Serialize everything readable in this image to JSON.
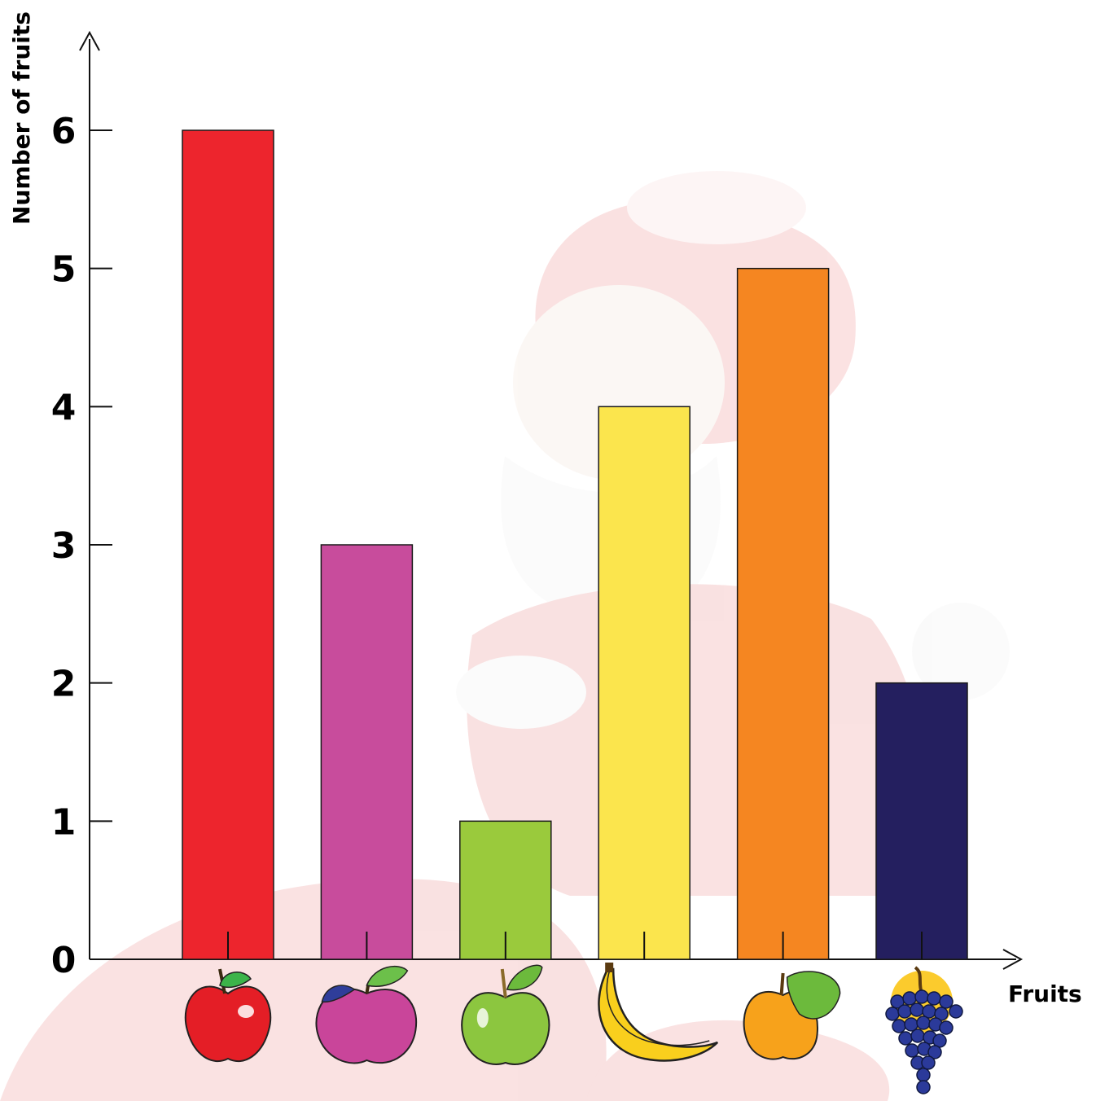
{
  "chart_data": {
    "type": "bar",
    "ylabel": "Number of fruits",
    "xlabel": "Fruits",
    "ylim": [
      0,
      6
    ],
    "yticks": [
      0,
      1,
      2,
      3,
      4,
      5,
      6
    ],
    "grid": false,
    "legend": "none",
    "categories": [
      {
        "icon": "red-apple-icon",
        "value": 6,
        "color": "#ed252d"
      },
      {
        "icon": "plum-icon",
        "value": 3,
        "color": "#c84c9c"
      },
      {
        "icon": "green-apple-icon",
        "value": 1,
        "color": "#9aca3c"
      },
      {
        "icon": "banana-icon",
        "value": 4,
        "color": "#fbe54d"
      },
      {
        "icon": "peach-icon",
        "value": 5,
        "color": "#f58621"
      },
      {
        "icon": "grapes-icon",
        "value": 2,
        "color": "#241f5f"
      }
    ],
    "background_icon": "santa-claus-watermark"
  }
}
